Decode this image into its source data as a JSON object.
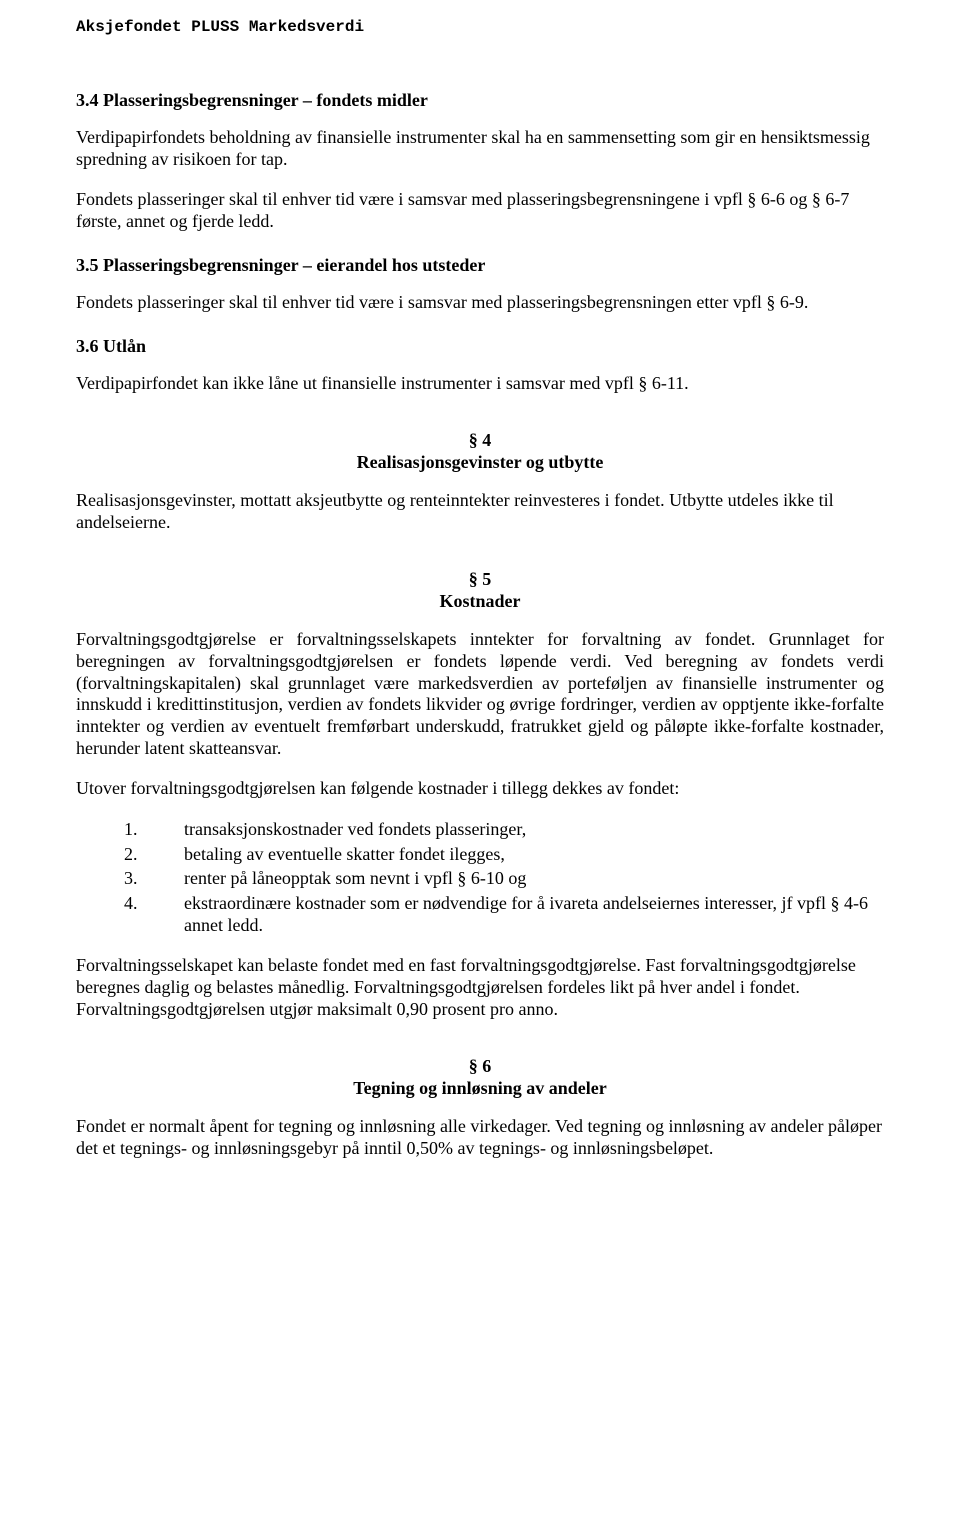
{
  "header": {
    "title": "Aksjefondet PLUSS Markedsverdi"
  },
  "s34": {
    "heading": "3.4 Plasseringsbegrensninger – fondets midler",
    "p1": "Verdipapirfondets beholdning av finansielle instrumenter skal ha en sammensetting som gir en hensiktsmessig spredning av risikoen for tap.",
    "p2": "Fondets plasseringer skal til enhver tid være i samsvar med plasseringsbegrensningene i vpfl § 6-6 og § 6-7 første, annet og fjerde ledd."
  },
  "s35": {
    "heading": "3.5 Plasseringsbegrensninger – eierandel hos utsteder",
    "p1": "Fondets plasseringer skal til enhver tid være i samsvar med plasseringsbegrensningen etter vpfl § 6-9."
  },
  "s36": {
    "heading": "3.6 Utlån",
    "p1": "Verdipapirfondet kan ikke låne ut finansielle instrumenter i samsvar med vpfl § 6-11."
  },
  "sec4": {
    "num": "§ 4",
    "title": "Realisasjonsgevinster og utbytte",
    "p1": "Realisasjonsgevinster, mottatt aksjeutbytte og renteinntekter reinvesteres i fondet. Utbytte utdeles ikke til andelseierne."
  },
  "sec5": {
    "num": "§ 5",
    "title": "Kostnader",
    "p1": "Forvaltningsgodtgjørelse er forvaltningsselskapets inntekter for forvaltning av fondet. Grunnlaget for beregningen av forvaltningsgodtgjørelsen er fondets løpende verdi. Ved beregning av fondets verdi (forvaltningskapitalen) skal grunnlaget være markedsverdien av porteføljen av finansielle instrumenter og innskudd i kredittinstitusjon, verdien av fondets likvider og øvrige fordringer, verdien av opptjente ikke-forfalte inntekter og verdien av eventuelt fremførbart underskudd, fratrukket gjeld og påløpte ikke-forfalte kostnader, herunder latent skatteansvar.",
    "p2": "Utover forvaltningsgodtgjørelsen kan følgende kostnader i tillegg dekkes av fondet:",
    "list": [
      {
        "n": "1.",
        "t": "transaksjonskostnader ved fondets plasseringer,"
      },
      {
        "n": "2.",
        "t": "betaling av eventuelle skatter fondet ilegges,"
      },
      {
        "n": "3.",
        "t": "renter på låneopptak som nevnt i vpfl § 6-10 og"
      },
      {
        "n": "4.",
        "t": "ekstraordinære kostnader som er nødvendige for å ivareta andelseiernes interesser, jf vpfl § 4-6 annet ledd."
      }
    ],
    "p3": "Forvaltningsselskapet kan belaste fondet med en fast forvaltningsgodtgjørelse. Fast forvaltningsgodtgjørelse beregnes daglig og belastes månedlig. Forvaltningsgodtgjørelsen fordeles likt på hver andel i fondet. Forvaltningsgodtgjørelsen utgjør maksimalt 0,90 prosent pro anno."
  },
  "sec6": {
    "num": "§ 6",
    "title": "Tegning og innløsning av andeler",
    "p1": "Fondet er normalt åpent for tegning og innløsning alle virkedager. Ved tegning og innløsning av andeler påløper det et tegnings- og innløsningsgebyr på inntil 0,50% av tegnings- og innløsningsbeløpet."
  }
}
